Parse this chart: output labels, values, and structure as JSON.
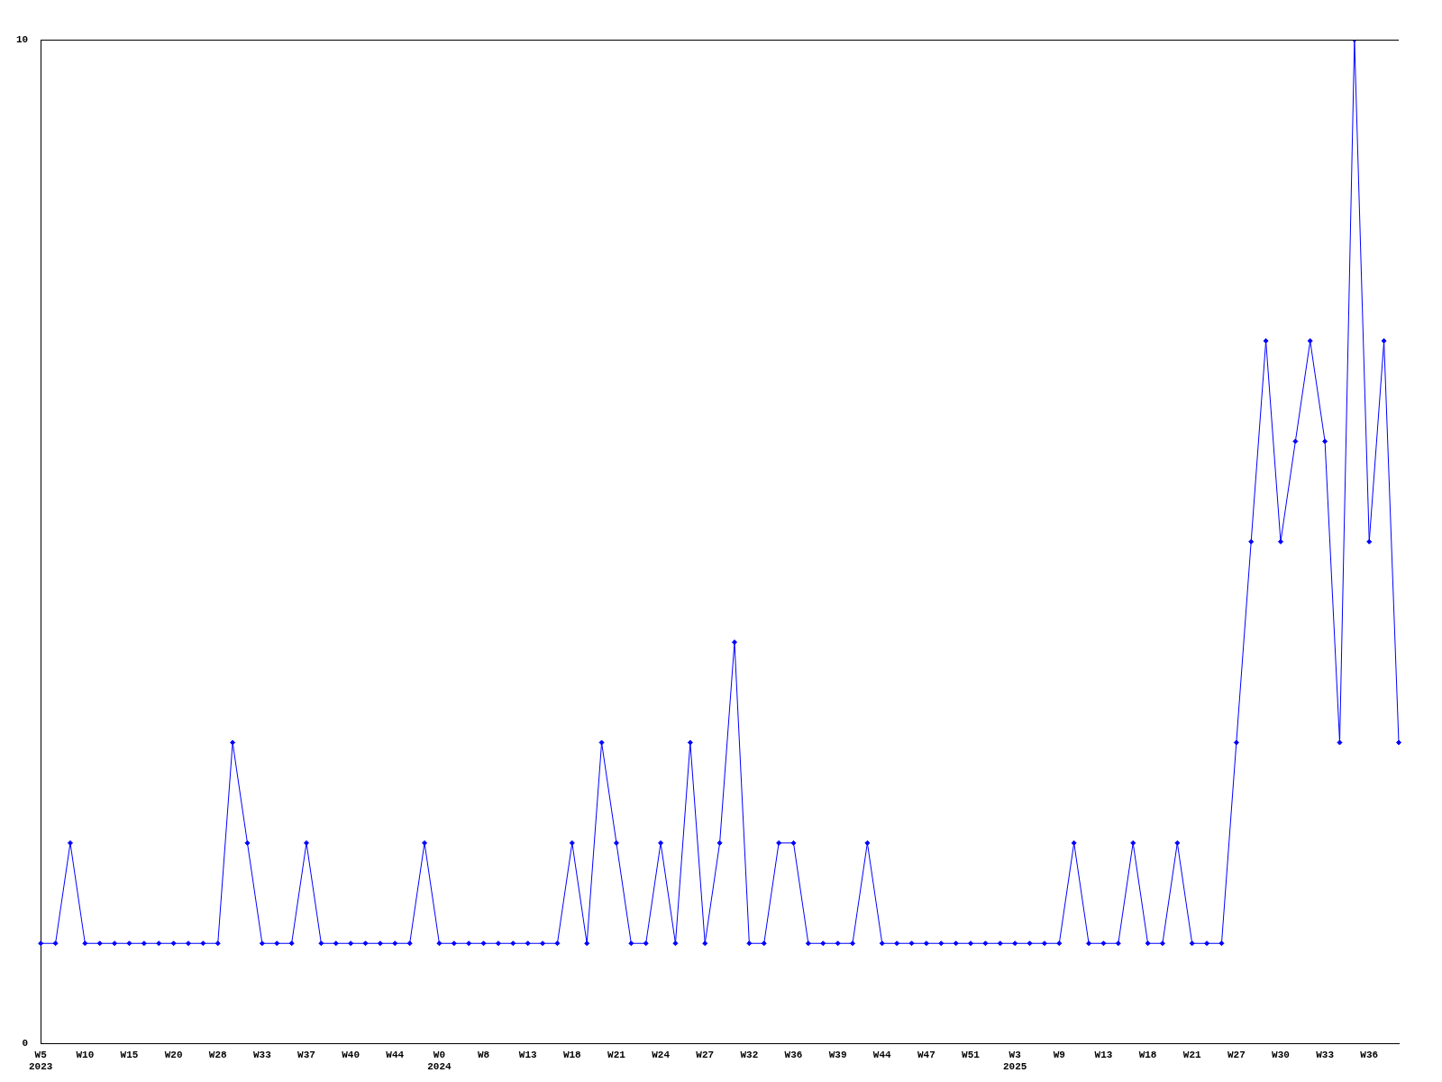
{
  "chart_data": {
    "type": "line",
    "categories": [
      "W5\n2023",
      null,
      null,
      "W10",
      null,
      null,
      "W15",
      null,
      null,
      "W20",
      null,
      null,
      "W28",
      null,
      null,
      "W33",
      null,
      null,
      "W37",
      null,
      null,
      "W40",
      null,
      null,
      "W44",
      null,
      null,
      "W0\n2024",
      null,
      null,
      "W8",
      null,
      null,
      "W13",
      null,
      null,
      "W18",
      null,
      null,
      "W21",
      null,
      null,
      "W24",
      null,
      null,
      "W27",
      null,
      null,
      "W32",
      null,
      null,
      "W36",
      null,
      null,
      "W39",
      null,
      null,
      "W44",
      null,
      null,
      "W47",
      null,
      null,
      "W51",
      null,
      null,
      "W3\n2025",
      null,
      null,
      "W9",
      null,
      null,
      "W13",
      null,
      null,
      "W18",
      null,
      null,
      "W21",
      null,
      null,
      "W27",
      null,
      null,
      "W30",
      null,
      null,
      "W33",
      null,
      null,
      "W36",
      null,
      null
    ],
    "series": [
      {
        "color": "#0000ff",
        "values": [
          1,
          1,
          2,
          1,
          1,
          1,
          1,
          1,
          1,
          1,
          1,
          1,
          1,
          3,
          2,
          1,
          1,
          1,
          2,
          1,
          1,
          1,
          1,
          1,
          1,
          1,
          2,
          1,
          1,
          1,
          1,
          1,
          1,
          1,
          1,
          1,
          2,
          1,
          3,
          2,
          1,
          1,
          2,
          1,
          3,
          1,
          2,
          4,
          1,
          1,
          2,
          2,
          1,
          1,
          1,
          1,
          2,
          1,
          1,
          1,
          1,
          1,
          1,
          1,
          1,
          1,
          1,
          1,
          1,
          1,
          2,
          1,
          1,
          1,
          2,
          1,
          1,
          2,
          1,
          1,
          1,
          3,
          5,
          7,
          5,
          6,
          7,
          6,
          3,
          10,
          5,
          7,
          3
        ]
      }
    ],
    "ylim": [
      0,
      10
    ],
    "yticks": [
      0,
      10
    ],
    "legend": false,
    "marker": "diamond",
    "line_style": "solid"
  }
}
